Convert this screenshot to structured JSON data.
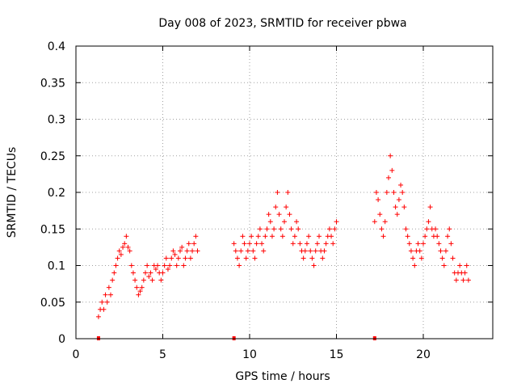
{
  "chart_data": {
    "type": "scatter",
    "title": "Day 008 of 2023, SRMTID for receiver pbwa",
    "xlabel": "GPS time / hours",
    "ylabel": "SRMTID / TECUs",
    "xlim": [
      0,
      24
    ],
    "ylim": [
      0,
      0.4
    ],
    "xticks": [
      0,
      5,
      10,
      15,
      20
    ],
    "xtick_labels": [
      "0",
      "5",
      "10",
      "15",
      "20"
    ],
    "yticks": [
      0,
      0.05,
      0.1,
      0.15,
      0.2,
      0.25,
      0.3,
      0.35,
      0.4
    ],
    "ytick_labels": [
      "0",
      "0.05",
      "0.1",
      "0.15",
      "0.2",
      "0.25",
      "0.3",
      "0.35",
      "0.4"
    ],
    "grid": true,
    "marker": "+",
    "color": "#ff0000",
    "series": [
      {
        "name": "SRMTID",
        "x": [
          1.3,
          1.4,
          1.5,
          1.6,
          1.7,
          1.8,
          1.9,
          2.0,
          2.1,
          2.2,
          2.3,
          2.4,
          2.5,
          2.6,
          2.7,
          2.8,
          2.9,
          3.0,
          3.1,
          3.2,
          3.3,
          3.4,
          3.5,
          3.6,
          3.7,
          3.8,
          3.9,
          4.0,
          4.1,
          4.2,
          4.3,
          4.4,
          4.5,
          4.6,
          4.7,
          4.8,
          4.9,
          5.0,
          5.1,
          5.2,
          5.3,
          5.4,
          5.5,
          5.6,
          5.7,
          5.8,
          5.9,
          6.0,
          6.1,
          6.2,
          6.3,
          6.4,
          6.5,
          6.6,
          6.7,
          6.8,
          6.9,
          7.0,
          9.1,
          9.2,
          9.3,
          9.4,
          9.5,
          9.6,
          9.7,
          9.8,
          9.9,
          10.0,
          10.1,
          10.2,
          10.3,
          10.4,
          10.5,
          10.6,
          10.7,
          10.8,
          10.9,
          11.0,
          11.1,
          11.2,
          11.3,
          11.4,
          11.5,
          11.6,
          11.7,
          11.8,
          11.9,
          12.0,
          12.1,
          12.2,
          12.3,
          12.4,
          12.5,
          12.6,
          12.7,
          12.8,
          12.9,
          13.0,
          13.1,
          13.2,
          13.3,
          13.4,
          13.5,
          13.6,
          13.7,
          13.8,
          13.9,
          14.0,
          14.1,
          14.2,
          14.3,
          14.4,
          14.5,
          14.6,
          14.7,
          14.8,
          14.9,
          15.0,
          17.2,
          17.3,
          17.4,
          17.5,
          17.6,
          17.7,
          17.8,
          17.9,
          18.0,
          18.1,
          18.2,
          18.3,
          18.4,
          18.5,
          18.6,
          18.7,
          18.8,
          18.9,
          19.0,
          19.1,
          19.2,
          19.3,
          19.4,
          19.5,
          19.6,
          19.7,
          19.8,
          19.9,
          20.0,
          20.1,
          20.2,
          20.3,
          20.4,
          20.5,
          20.6,
          20.7,
          20.8,
          20.9,
          21.0,
          21.1,
          21.2,
          21.3,
          21.4,
          21.5,
          21.6,
          21.7,
          21.8,
          21.9,
          22.0,
          22.1,
          22.2,
          22.3,
          22.4,
          22.5,
          22.6
        ],
        "y": [
          0.03,
          0.04,
          0.05,
          0.04,
          0.06,
          0.05,
          0.07,
          0.06,
          0.08,
          0.09,
          0.1,
          0.11,
          0.12,
          0.115,
          0.125,
          0.13,
          0.14,
          0.125,
          0.12,
          0.1,
          0.09,
          0.08,
          0.07,
          0.06,
          0.065,
          0.07,
          0.08,
          0.09,
          0.1,
          0.085,
          0.09,
          0.08,
          0.1,
          0.095,
          0.1,
          0.09,
          0.08,
          0.09,
          0.1,
          0.11,
          0.095,
          0.1,
          0.11,
          0.12,
          0.115,
          0.1,
          0.11,
          0.12,
          0.125,
          0.1,
          0.11,
          0.12,
          0.13,
          0.11,
          0.12,
          0.13,
          0.14,
          0.12,
          0.13,
          0.12,
          0.11,
          0.1,
          0.12,
          0.14,
          0.13,
          0.11,
          0.12,
          0.13,
          0.14,
          0.12,
          0.11,
          0.13,
          0.14,
          0.15,
          0.13,
          0.12,
          0.14,
          0.15,
          0.17,
          0.16,
          0.14,
          0.15,
          0.18,
          0.2,
          0.17,
          0.15,
          0.14,
          0.16,
          0.18,
          0.2,
          0.17,
          0.15,
          0.13,
          0.14,
          0.16,
          0.15,
          0.13,
          0.12,
          0.11,
          0.12,
          0.13,
          0.14,
          0.12,
          0.11,
          0.1,
          0.12,
          0.13,
          0.14,
          0.12,
          0.11,
          0.12,
          0.13,
          0.14,
          0.15,
          0.14,
          0.13,
          0.15,
          0.16,
          0.16,
          0.2,
          0.19,
          0.17,
          0.15,
          0.14,
          0.16,
          0.2,
          0.22,
          0.25,
          0.23,
          0.2,
          0.18,
          0.17,
          0.19,
          0.21,
          0.2,
          0.18,
          0.15,
          0.14,
          0.13,
          0.12,
          0.11,
          0.1,
          0.12,
          0.13,
          0.12,
          0.11,
          0.13,
          0.14,
          0.15,
          0.16,
          0.18,
          0.15,
          0.14,
          0.15,
          0.14,
          0.13,
          0.12,
          0.11,
          0.1,
          0.12,
          0.14,
          0.15,
          0.13,
          0.11,
          0.09,
          0.08,
          0.09,
          0.1,
          0.09,
          0.08,
          0.09,
          0.1,
          0.08
        ]
      }
    ],
    "gap_markers_x": [
      1.3,
      9.1,
      17.2
    ]
  }
}
